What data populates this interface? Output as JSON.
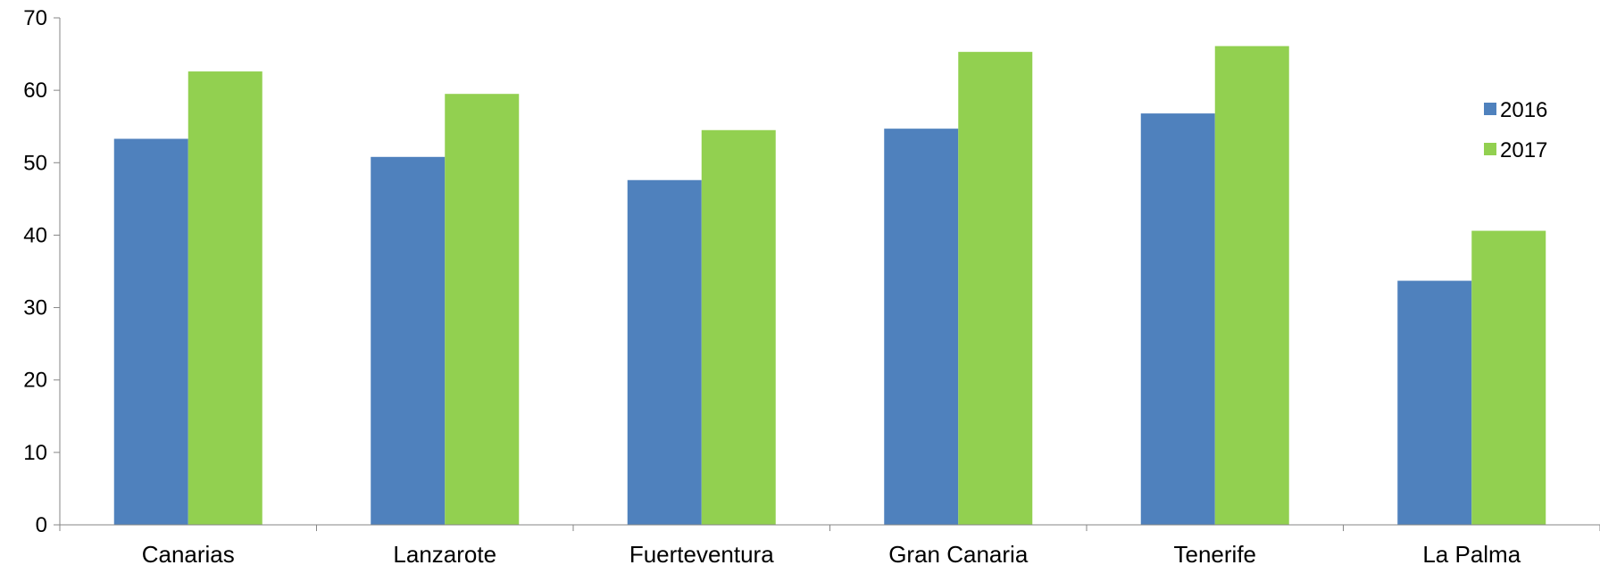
{
  "chart_data": {
    "type": "bar",
    "title": "",
    "xlabel": "",
    "ylabel": "",
    "categories": [
      "Canarias",
      "Lanzarote",
      "Fuerteventura",
      "Gran Canaria",
      "Tenerife",
      "La Palma"
    ],
    "series": [
      {
        "name": "2016",
        "color": "#4F81BD",
        "values": [
          53.3,
          50.8,
          47.6,
          54.7,
          56.8,
          33.7
        ]
      },
      {
        "name": "2017",
        "color": "#92D050",
        "values": [
          62.6,
          59.5,
          54.5,
          65.3,
          66.1,
          40.6
        ]
      }
    ],
    "ylim": [
      0,
      70
    ],
    "yticks": [
      0,
      10,
      20,
      30,
      40,
      50,
      60,
      70
    ],
    "grid": false,
    "legend_position": "right"
  }
}
